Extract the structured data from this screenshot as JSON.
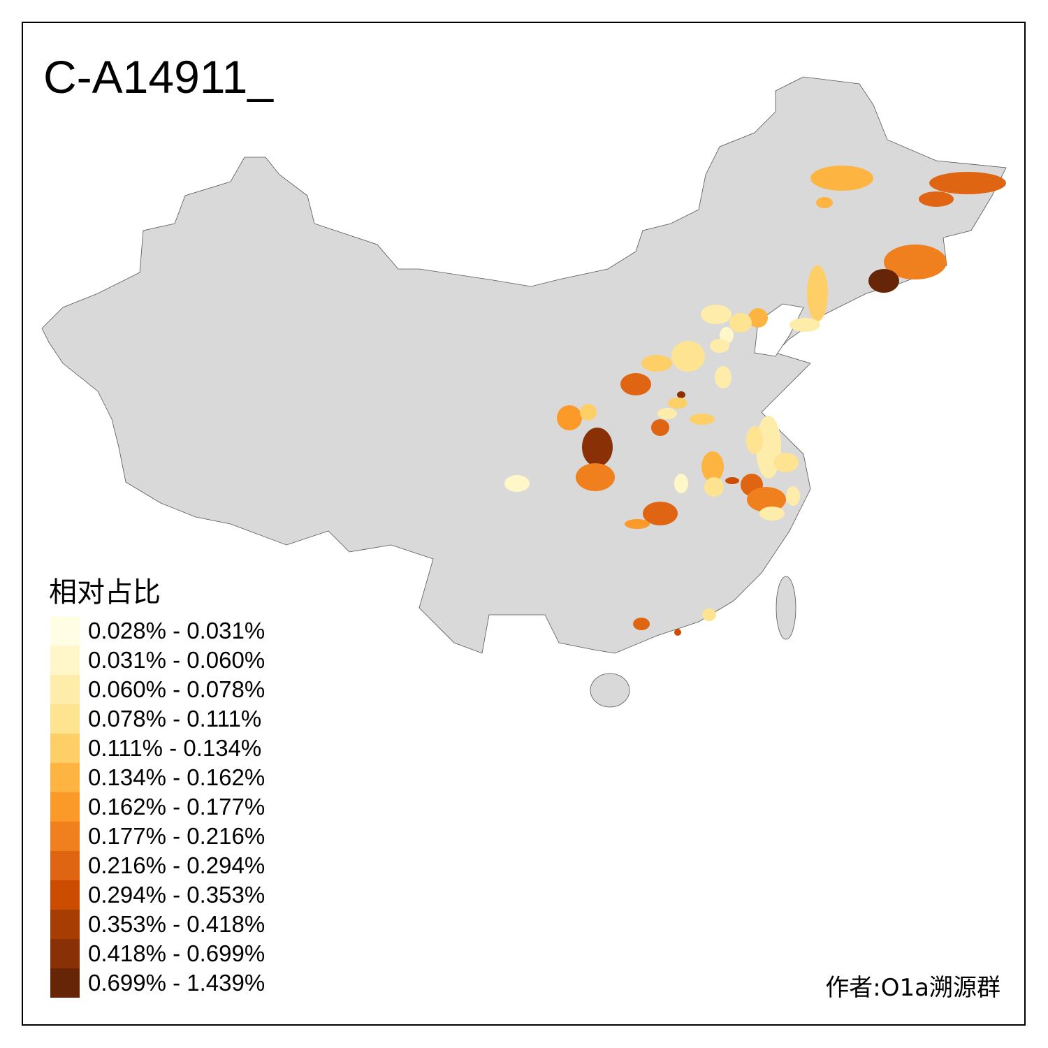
{
  "title": "C-A14911_",
  "legend": {
    "title": "相对占比",
    "items": [
      {
        "label": "0.028% - 0.031%",
        "color": "#FFFEE5"
      },
      {
        "label": "0.031% - 0.060%",
        "color": "#FFF7C8"
      },
      {
        "label": "0.060% - 0.078%",
        "color": "#FEEDAA"
      },
      {
        "label": "0.078% - 0.111%",
        "color": "#FEE391"
      },
      {
        "label": "0.111% - 0.134%",
        "color": "#FECF67"
      },
      {
        "label": "0.134% - 0.162%",
        "color": "#FEB441"
      },
      {
        "label": "0.162% - 0.177%",
        "color": "#FB9A29"
      },
      {
        "label": "0.177% - 0.216%",
        "color": "#F0801E"
      },
      {
        "label": "0.216% - 0.294%",
        "color": "#E06512"
      },
      {
        "label": "0.294% - 0.353%",
        "color": "#CC4C02"
      },
      {
        "label": "0.353% - 0.418%",
        "color": "#A83D04"
      },
      {
        "label": "0.418% - 0.699%",
        "color": "#8A3006"
      },
      {
        "label": "0.699% - 1.439%",
        "color": "#662506"
      }
    ]
  },
  "map": {
    "base_color": "#D9D9D9",
    "no_data_color": "#D9D9D9"
  },
  "author": "作者:O1a溯源群"
}
